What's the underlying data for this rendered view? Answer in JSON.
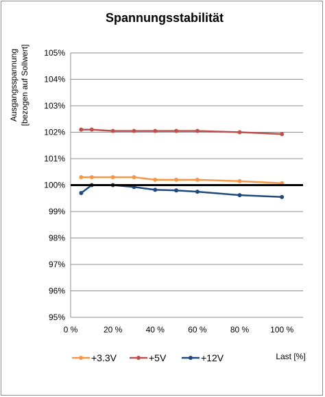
{
  "chart_data": {
    "type": "line",
    "title": "Spannungsstabilität",
    "ylabel_lines": [
      "Ausgangsspannung",
      "[bezogen auf Sollwert]"
    ],
    "xlabel": "Last [%]",
    "x_ticks": [
      0,
      20,
      40,
      60,
      80,
      100
    ],
    "x_tick_labels": [
      "0 %",
      "20 %",
      "40 %",
      "60 %",
      "80 %",
      "100 %"
    ],
    "y_ticks": [
      95,
      96,
      97,
      98,
      99,
      100,
      101,
      102,
      103,
      104,
      105
    ],
    "y_tick_labels": [
      "95%",
      "96%",
      "97%",
      "98%",
      "99%",
      "100%",
      "101%",
      "102%",
      "103%",
      "104%",
      "105%"
    ],
    "xlim": [
      0,
      110
    ],
    "ylim": [
      95,
      105
    ],
    "grid": "horizontal",
    "legend_position": "bottom",
    "reference_line": {
      "y": 100,
      "color": "#000000"
    },
    "series": [
      {
        "name": "+3.3V",
        "color": "#f79646",
        "x": [
          5,
          10,
          20,
          30,
          40,
          50,
          60,
          80,
          100
        ],
        "y": [
          100.3,
          100.3,
          100.3,
          100.3,
          100.2,
          100.2,
          100.2,
          100.15,
          100.07
        ]
      },
      {
        "name": "+5V",
        "color": "#c0504d",
        "x": [
          5,
          10,
          20,
          30,
          40,
          50,
          60,
          80,
          100
        ],
        "y": [
          102.1,
          102.1,
          102.05,
          102.05,
          102.05,
          102.05,
          102.05,
          102.0,
          101.93
        ]
      },
      {
        "name": "+12V",
        "color": "#1f497d",
        "x": [
          5,
          10,
          20,
          30,
          40,
          50,
          60,
          80,
          100
        ],
        "y": [
          99.7,
          100.0,
          100.0,
          99.93,
          99.82,
          99.8,
          99.75,
          99.62,
          99.55
        ]
      }
    ]
  }
}
